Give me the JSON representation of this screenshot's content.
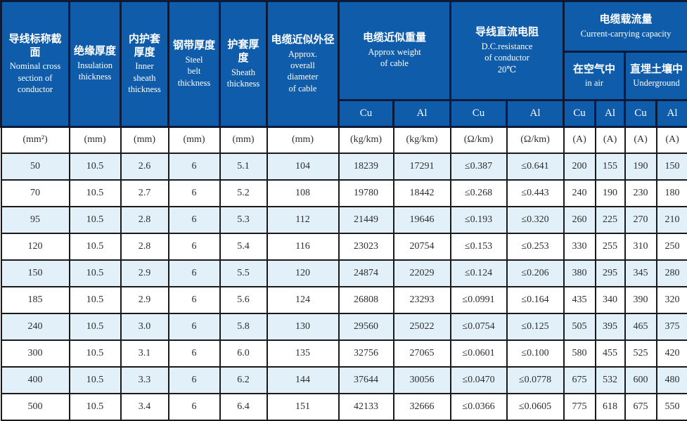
{
  "colors": {
    "header_bg": "#0f5cab",
    "header_border": "#0a1a38",
    "header_text": "#ffffff",
    "row_alt_bg": "#e2f0f9",
    "row_bg": "#ffffff",
    "body_border": "#1a1a1a",
    "body_text": "#2e2e2e"
  },
  "header": {
    "columns": [
      {
        "zh": "导线标称截面",
        "en": "Nominal cross\nsection of\nconductor"
      },
      {
        "zh": "绝缘厚度",
        "en": "Insulation\nthickness"
      },
      {
        "zh": "内护套\n厚度",
        "en": "Inner\nsheath\nthickness"
      },
      {
        "zh": "钢带厚度",
        "en": "Steel\nbelt\nthickness"
      },
      {
        "zh": "护套厚度",
        "en": "Sheath\nthickness"
      },
      {
        "zh": "电缆近似外径",
        "en": "Approx.\noverall\ndiameter\nof cable"
      }
    ],
    "weight": {
      "zh": "电缆近似重量",
      "en": "Approx weight\nof cable"
    },
    "resistance": {
      "zh": "导线直流电阻",
      "en": "D.C.resistance\nof conductor\n20℃"
    },
    "capacity": {
      "zh": "电缆载流量",
      "en": "Current-carrying capacity"
    },
    "in_air": {
      "zh": "在空气中",
      "en": "in air"
    },
    "underground": {
      "zh": "直埋土壤中",
      "en": "Underground"
    },
    "metals": [
      "Cu",
      "Al",
      "Cu",
      "Al",
      "Cu",
      "Al",
      "Cu",
      "Al"
    ]
  },
  "units": [
    "(mm²)",
    "(mm)",
    "(mm)",
    "(mm)",
    "(mm)",
    "(mm)",
    "(kg/km)",
    "(kg/km)",
    "(Ω/km)",
    "(Ω/km)",
    "(A)",
    "(A)",
    "(A)",
    "(A)"
  ],
  "rows": [
    [
      "50",
      "10.5",
      "2.6",
      "6",
      "5.1",
      "104",
      "18239",
      "17291",
      "≤0.387",
      "≤0.641",
      "200",
      "155",
      "190",
      "150"
    ],
    [
      "70",
      "10.5",
      "2.7",
      "6",
      "5.2",
      "108",
      "19780",
      "18442",
      "≤0.268",
      "≤0.443",
      "240",
      "190",
      "230",
      "180"
    ],
    [
      "95",
      "10.5",
      "2.8",
      "6",
      "5.3",
      "112",
      "21449",
      "19646",
      "≤0.193",
      "≤0.320",
      "260",
      "225",
      "270",
      "210"
    ],
    [
      "120",
      "10.5",
      "2.8",
      "6",
      "5.4",
      "116",
      "23023",
      "20754",
      "≤0.153",
      "≤0.253",
      "330",
      "255",
      "310",
      "250"
    ],
    [
      "150",
      "10.5",
      "2.9",
      "6",
      "5.5",
      "120",
      "24874",
      "22029",
      "≤0.124",
      "≤0.206",
      "380",
      "295",
      "345",
      "280"
    ],
    [
      "185",
      "10.5",
      "2.9",
      "6",
      "5.6",
      "124",
      "26808",
      "23293",
      "≤0.0991",
      "≤0.164",
      "435",
      "340",
      "390",
      "320"
    ],
    [
      "240",
      "10.5",
      "3.0",
      "6",
      "5.8",
      "130",
      "29560",
      "25022",
      "≤0.0754",
      "≤0.125",
      "505",
      "395",
      "465",
      "375"
    ],
    [
      "300",
      "10.5",
      "3.1",
      "6",
      "6.0",
      "135",
      "32756",
      "27065",
      "≤0.0601",
      "≤0.100",
      "580",
      "455",
      "525",
      "420"
    ],
    [
      "400",
      "10.5",
      "3.3",
      "6",
      "6.2",
      "144",
      "37644",
      "30056",
      "≤0.0470",
      "≤0.0778",
      "675",
      "532",
      "600",
      "480"
    ],
    [
      "500",
      "10.5",
      "3.4",
      "6",
      "6.4",
      "151",
      "42133",
      "32666",
      "≤0.0366",
      "≤0.0605",
      "775",
      "618",
      "675",
      "550"
    ]
  ]
}
